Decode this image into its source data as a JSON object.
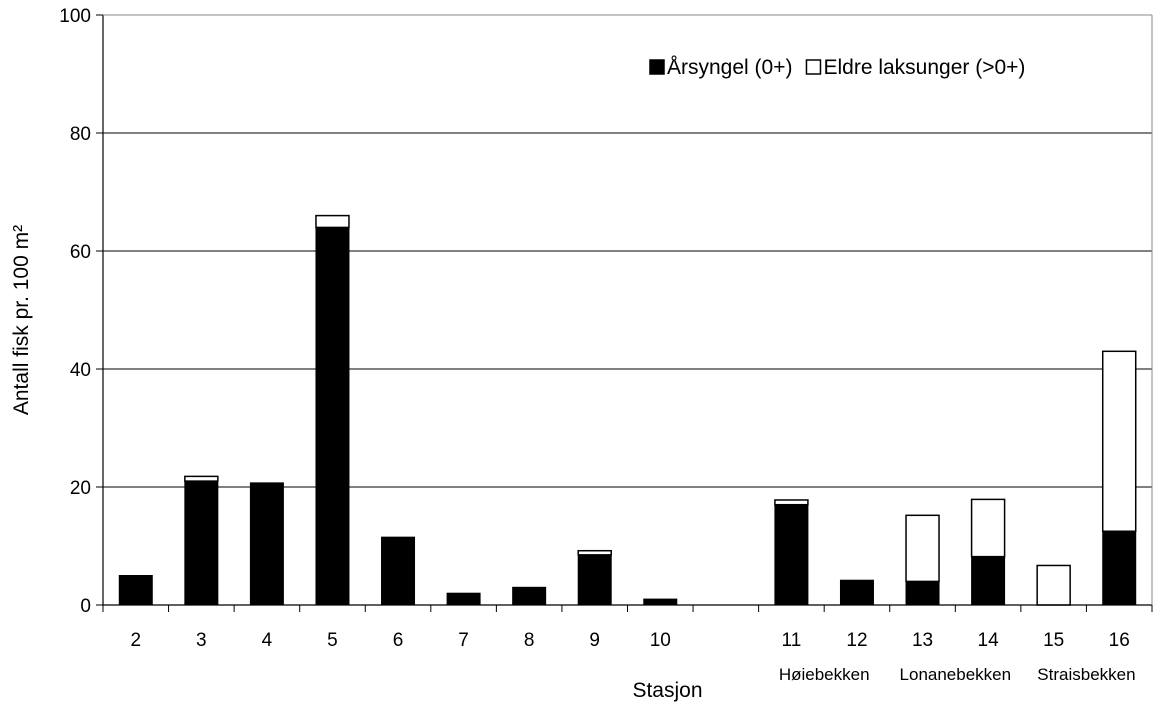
{
  "chart_data": {
    "type": "bar",
    "stacked": true,
    "title": "",
    "xlabel": "Stasjon",
    "ylabel": "Antall fisk pr. 100 m²",
    "ylim": [
      0,
      100
    ],
    "yticks": [
      0,
      20,
      40,
      60,
      80,
      100
    ],
    "grid": true,
    "legend_position": "top-right",
    "categories": [
      "2",
      "3",
      "4",
      "5",
      "6",
      "7",
      "8",
      "9",
      "10",
      "",
      "11",
      "12",
      "13",
      "14",
      "15",
      "16"
    ],
    "sublabels": [
      "",
      "",
      "",
      "",
      "",
      "",
      "",
      "",
      "",
      "",
      "Høiebekken",
      "",
      "Lonanebekken",
      "",
      "Straisbekken",
      ""
    ],
    "series": [
      {
        "name": "Årsyngel (0+)",
        "color": "#000000",
        "values": [
          5,
          21,
          20.7,
          64,
          11.5,
          2,
          3,
          8.5,
          1,
          null,
          17,
          4.2,
          4,
          8.2,
          0,
          12.5
        ]
      },
      {
        "name": "Eldre laksunger (>0+)",
        "color": "#ffffff",
        "values": [
          0,
          0.8,
          0,
          2,
          0,
          0,
          0,
          0.7,
          0,
          null,
          0.8,
          0,
          11.2,
          9.7,
          6.7,
          30.5
        ]
      }
    ]
  }
}
